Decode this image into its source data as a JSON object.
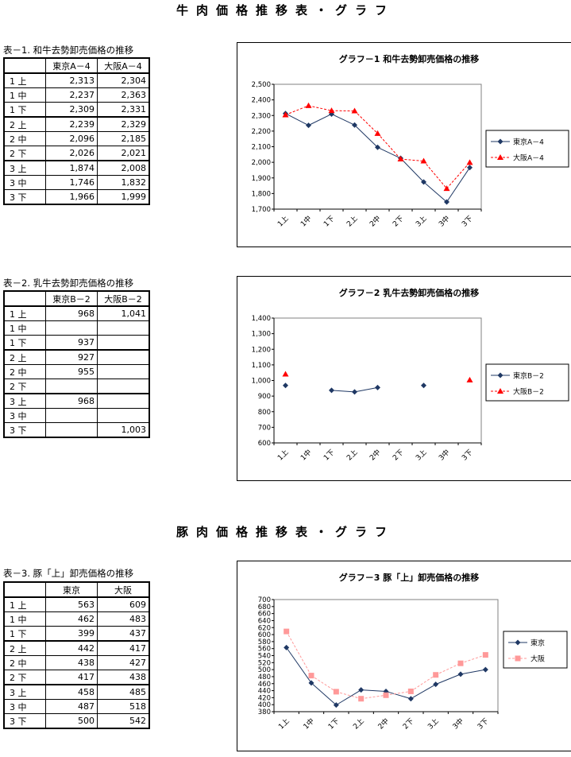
{
  "beef_title": "牛肉価格推移表・グラフ",
  "pork_title": "豚肉価格推移表・グラフ",
  "tables": [
    {
      "caption": "表－1. 和牛去勢卸売価格の推移",
      "headers": [
        "東京A－4",
        "大阪A－4"
      ],
      "rows": [
        {
          "label": "1 上",
          "v": [
            "2,313",
            "2,304"
          ]
        },
        {
          "label": "1 中",
          "v": [
            "2,237",
            "2,363"
          ]
        },
        {
          "label": "1 下",
          "v": [
            "2,309",
            "2,331"
          ]
        },
        {
          "label": "2 上",
          "v": [
            "2,239",
            "2,329"
          ]
        },
        {
          "label": "2 中",
          "v": [
            "2,096",
            "2,185"
          ]
        },
        {
          "label": "2 下",
          "v": [
            "2,026",
            "2,021"
          ]
        },
        {
          "label": "3 上",
          "v": [
            "1,874",
            "2,008"
          ]
        },
        {
          "label": "3 中",
          "v": [
            "1,746",
            "1,832"
          ]
        },
        {
          "label": "3 下",
          "v": [
            "1,966",
            "1,999"
          ]
        }
      ]
    },
    {
      "caption": "表－2. 乳牛去勢卸売価格の推移",
      "headers": [
        "東京B－2",
        "大阪B－2"
      ],
      "rows": [
        {
          "label": "1 上",
          "v": [
            "968",
            "1,041"
          ]
        },
        {
          "label": "1 中",
          "v": [
            "",
            ""
          ]
        },
        {
          "label": "1 下",
          "v": [
            "937",
            ""
          ]
        },
        {
          "label": "2 上",
          "v": [
            "927",
            ""
          ]
        },
        {
          "label": "2 中",
          "v": [
            "955",
            ""
          ]
        },
        {
          "label": "2 下",
          "v": [
            "",
            ""
          ]
        },
        {
          "label": "3 上",
          "v": [
            "968",
            ""
          ]
        },
        {
          "label": "3 中",
          "v": [
            "",
            ""
          ]
        },
        {
          "label": "3 下",
          "v": [
            "",
            "1,003"
          ]
        }
      ]
    },
    {
      "caption": "表－3. 豚「上」卸売価格の推移",
      "headers": [
        "東京",
        "大阪"
      ],
      "rows": [
        {
          "label": "1 上",
          "v": [
            "563",
            "609"
          ]
        },
        {
          "label": "1 中",
          "v": [
            "462",
            "483"
          ]
        },
        {
          "label": "1 下",
          "v": [
            "399",
            "437"
          ]
        },
        {
          "label": "2 上",
          "v": [
            "442",
            "417"
          ]
        },
        {
          "label": "2 中",
          "v": [
            "438",
            "427"
          ]
        },
        {
          "label": "2 下",
          "v": [
            "417",
            "438"
          ]
        },
        {
          "label": "3 上",
          "v": [
            "458",
            "485"
          ]
        },
        {
          "label": "3 中",
          "v": [
            "487",
            "518"
          ]
        },
        {
          "label": "3 下",
          "v": [
            "500",
            "542"
          ]
        }
      ]
    }
  ],
  "chart_data": [
    {
      "type": "line",
      "title": "グラフ－1 和牛去勢卸売価格の推移",
      "categories": [
        "1上",
        "1中",
        "1下",
        "2上",
        "2中",
        "2下",
        "3上",
        "3中",
        "3下"
      ],
      "ylim": [
        1700,
        2500
      ],
      "yticks": [
        "1,700",
        "1,800",
        "1,900",
        "2,000",
        "2,100",
        "2,200",
        "2,300",
        "2,400",
        "2,500"
      ],
      "legend_position": "right",
      "series": [
        {
          "name": "東京A－4",
          "color": "#1f3864",
          "marker": "diamond",
          "dash": false,
          "values": [
            2313,
            2237,
            2309,
            2239,
            2096,
            2026,
            1874,
            1746,
            1966
          ]
        },
        {
          "name": "大阪A－4",
          "color": "#ff0000",
          "marker": "triangle",
          "dash": true,
          "values": [
            2304,
            2363,
            2331,
            2329,
            2185,
            2021,
            2008,
            1832,
            1999
          ]
        }
      ]
    },
    {
      "type": "line",
      "title": "グラフ－2 乳牛去勢卸売価格の推移",
      "categories": [
        "1上",
        "1中",
        "1下",
        "2上",
        "2中",
        "2下",
        "3上",
        "3中",
        "3下"
      ],
      "ylim": [
        600,
        1400
      ],
      "yticks": [
        "600",
        "700",
        "800",
        "900",
        "1,000",
        "1,100",
        "1,200",
        "1,300",
        "1,400"
      ],
      "legend_position": "right",
      "series": [
        {
          "name": "東京B－2",
          "color": "#1f3864",
          "marker": "diamond",
          "dash": false,
          "values": [
            968,
            null,
            937,
            927,
            955,
            null,
            968,
            null,
            null
          ]
        },
        {
          "name": "大阪B－2",
          "color": "#ff0000",
          "marker": "triangle",
          "dash": true,
          "values": [
            1041,
            null,
            null,
            null,
            null,
            null,
            null,
            null,
            1003
          ]
        }
      ]
    },
    {
      "type": "line",
      "title": "グラフ－3 豚「上」卸売価格の推移",
      "categories": [
        "1上",
        "1中",
        "1下",
        "2上",
        "2中",
        "2下",
        "3上",
        "3中",
        "3下"
      ],
      "ylim": [
        380,
        700
      ],
      "yticks": [
        "380",
        "400",
        "420",
        "440",
        "460",
        "480",
        "500",
        "520",
        "540",
        "560",
        "580",
        "600",
        "620",
        "640",
        "660",
        "680",
        "700"
      ],
      "legend_position": "right",
      "series": [
        {
          "name": "東京",
          "color": "#1f3864",
          "marker": "diamond",
          "dash": false,
          "values": [
            563,
            462,
            399,
            442,
            438,
            417,
            458,
            487,
            500
          ]
        },
        {
          "name": "大阪",
          "color": "#ff9999",
          "marker": "square",
          "dash": true,
          "values": [
            609,
            483,
            437,
            417,
            427,
            438,
            485,
            518,
            542
          ]
        }
      ]
    }
  ]
}
